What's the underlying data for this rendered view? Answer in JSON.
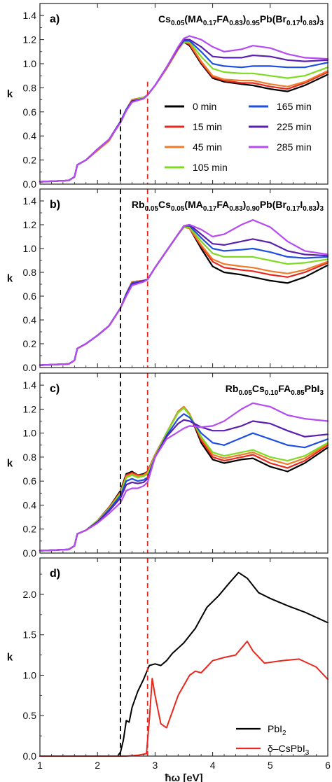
{
  "x_axis_label": "ħω [eV]",
  "x_ticks": [
    "1",
    "2",
    "3",
    "4",
    "5",
    "6"
  ],
  "colors": {
    "0 min": "#000000",
    "15 min": "#e8281e",
    "45 min": "#f07b2a",
    "105 min": "#7ddc1f",
    "165 min": "#1f4fe0",
    "225 min": "#5b1fb0",
    "285 min": "#b54bf0",
    "guide_black": "#000000",
    "guide_red": "#e8281e"
  },
  "chart_data": [
    {
      "panel": "a)",
      "type": "line",
      "title_segments": [
        [
          "Cs",
          ""
        ],
        [
          "0.05",
          "sub"
        ],
        [
          "(MA",
          ""
        ],
        [
          "0.17",
          "sub"
        ],
        [
          "FA",
          ""
        ],
        [
          "0.83",
          "sub"
        ],
        [
          ")",
          ""
        ],
        [
          "0.95",
          "sub"
        ],
        [
          "Pb(Br",
          ""
        ],
        [
          "0.17",
          "sub"
        ],
        [
          "I",
          ""
        ],
        [
          "0.83",
          "sub"
        ],
        [
          ")",
          ""
        ],
        [
          "3",
          "sub"
        ]
      ],
      "ylabel": "k",
      "xlim": [
        1,
        6
      ],
      "ylim": [
        0,
        1.5
      ],
      "y_ticks": [
        "0.0",
        "0.2",
        "0.4",
        "0.6",
        "0.8",
        "1.0",
        "1.2",
        "1.4"
      ],
      "vlines": [
        2.4,
        2.87
      ],
      "legend": [
        "0 min",
        "15 min",
        "45 min",
        "105 min",
        "165 min",
        "225 min",
        "285 min"
      ],
      "legend_layout": "two-column, center-right",
      "x": [
        1.0,
        1.5,
        1.6,
        1.65,
        1.8,
        2.0,
        2.2,
        2.4,
        2.5,
        2.6,
        2.8,
        2.87,
        3.0,
        3.2,
        3.4,
        3.5,
        3.6,
        3.8,
        4.0,
        4.2,
        4.5,
        4.7,
        5.0,
        5.3,
        5.6,
        6.0
      ],
      "series": [
        {
          "name": "0 min",
          "values": [
            0.02,
            0.03,
            0.06,
            0.16,
            0.2,
            0.28,
            0.36,
            0.52,
            0.62,
            0.7,
            0.72,
            0.74,
            0.82,
            0.96,
            1.12,
            1.18,
            1.15,
            1.0,
            0.88,
            0.85,
            0.83,
            0.82,
            0.79,
            0.77,
            0.82,
            0.91
          ]
        },
        {
          "name": "15 min",
          "values": [
            0.02,
            0.03,
            0.06,
            0.16,
            0.2,
            0.28,
            0.36,
            0.52,
            0.62,
            0.7,
            0.72,
            0.74,
            0.82,
            0.96,
            1.12,
            1.18,
            1.16,
            1.01,
            0.89,
            0.86,
            0.84,
            0.84,
            0.81,
            0.79,
            0.84,
            0.93
          ]
        },
        {
          "name": "45 min",
          "values": [
            0.02,
            0.03,
            0.06,
            0.16,
            0.2,
            0.28,
            0.36,
            0.52,
            0.62,
            0.7,
            0.72,
            0.74,
            0.82,
            0.96,
            1.12,
            1.18,
            1.17,
            1.02,
            0.9,
            0.87,
            0.86,
            0.86,
            0.83,
            0.81,
            0.85,
            0.94
          ]
        },
        {
          "name": "105 min",
          "values": [
            0.02,
            0.03,
            0.06,
            0.16,
            0.2,
            0.29,
            0.37,
            0.52,
            0.62,
            0.69,
            0.72,
            0.74,
            0.82,
            0.97,
            1.13,
            1.18,
            1.18,
            1.06,
            0.96,
            0.93,
            0.92,
            0.92,
            0.9,
            0.88,
            0.9,
            0.97
          ]
        },
        {
          "name": "165 min",
          "values": [
            0.02,
            0.03,
            0.06,
            0.16,
            0.2,
            0.29,
            0.37,
            0.52,
            0.62,
            0.69,
            0.71,
            0.74,
            0.82,
            0.97,
            1.13,
            1.19,
            1.19,
            1.1,
            1.0,
            0.98,
            0.97,
            0.98,
            0.98,
            0.97,
            0.97,
            1.01
          ]
        },
        {
          "name": "225 min",
          "values": [
            0.02,
            0.03,
            0.06,
            0.16,
            0.2,
            0.29,
            0.37,
            0.52,
            0.61,
            0.69,
            0.71,
            0.74,
            0.82,
            0.97,
            1.13,
            1.2,
            1.2,
            1.14,
            1.06,
            1.05,
            1.05,
            1.07,
            1.06,
            1.03,
            1.02,
            1.03
          ]
        },
        {
          "name": "285 min",
          "values": [
            0.02,
            0.03,
            0.06,
            0.16,
            0.2,
            0.29,
            0.37,
            0.51,
            0.61,
            0.68,
            0.71,
            0.74,
            0.82,
            0.97,
            1.14,
            1.21,
            1.23,
            1.2,
            1.14,
            1.1,
            1.12,
            1.15,
            1.13,
            1.08,
            1.05,
            1.04
          ]
        }
      ]
    },
    {
      "panel": "b)",
      "type": "line",
      "title_segments": [
        [
          "Rb",
          ""
        ],
        [
          "0.05",
          "sub"
        ],
        [
          "Cs",
          ""
        ],
        [
          "0.05",
          "sub"
        ],
        [
          "(MA",
          ""
        ],
        [
          "0.17",
          "sub"
        ],
        [
          "FA",
          ""
        ],
        [
          "0.83",
          "sub"
        ],
        [
          ")",
          ""
        ],
        [
          "0.90",
          "sub"
        ],
        [
          "Pb(Br",
          ""
        ],
        [
          "0.17",
          "sub"
        ],
        [
          "I",
          ""
        ],
        [
          "0.83",
          "sub"
        ],
        [
          ")",
          ""
        ],
        [
          "3",
          "sub"
        ]
      ],
      "ylabel": "k",
      "xlim": [
        1,
        6
      ],
      "ylim": [
        0,
        1.5
      ],
      "y_ticks": [
        "0.0",
        "0.2",
        "0.4",
        "0.6",
        "0.8",
        "1.0",
        "1.2",
        "1.4"
      ],
      "vlines": [
        2.4,
        2.87
      ],
      "x": [
        1.0,
        1.5,
        1.6,
        1.65,
        1.8,
        2.0,
        2.2,
        2.4,
        2.5,
        2.6,
        2.8,
        2.87,
        3.0,
        3.2,
        3.4,
        3.5,
        3.6,
        3.8,
        4.0,
        4.2,
        4.5,
        4.7,
        5.0,
        5.3,
        5.6,
        6.0
      ],
      "series": [
        {
          "name": "0 min",
          "values": [
            0.02,
            0.03,
            0.06,
            0.16,
            0.2,
            0.27,
            0.35,
            0.5,
            0.62,
            0.72,
            0.73,
            0.74,
            0.84,
            0.98,
            1.12,
            1.18,
            1.17,
            1.0,
            0.85,
            0.8,
            0.78,
            0.76,
            0.73,
            0.71,
            0.76,
            0.86
          ]
        },
        {
          "name": "15 min",
          "values": [
            0.02,
            0.03,
            0.06,
            0.16,
            0.2,
            0.27,
            0.35,
            0.5,
            0.62,
            0.72,
            0.73,
            0.74,
            0.84,
            0.98,
            1.12,
            1.18,
            1.17,
            1.02,
            0.89,
            0.84,
            0.82,
            0.81,
            0.78,
            0.76,
            0.8,
            0.88
          ]
        },
        {
          "name": "45 min",
          "values": [
            0.02,
            0.03,
            0.06,
            0.16,
            0.2,
            0.27,
            0.35,
            0.5,
            0.62,
            0.72,
            0.73,
            0.74,
            0.84,
            0.98,
            1.12,
            1.18,
            1.17,
            1.03,
            0.91,
            0.87,
            0.85,
            0.84,
            0.81,
            0.79,
            0.82,
            0.89
          ]
        },
        {
          "name": "105 min",
          "values": [
            0.02,
            0.03,
            0.06,
            0.16,
            0.2,
            0.27,
            0.35,
            0.5,
            0.62,
            0.71,
            0.73,
            0.74,
            0.84,
            0.98,
            1.12,
            1.18,
            1.18,
            1.06,
            0.96,
            0.93,
            0.93,
            0.93,
            0.9,
            0.87,
            0.88,
            0.91
          ]
        },
        {
          "name": "165 min",
          "values": [
            0.02,
            0.03,
            0.06,
            0.16,
            0.2,
            0.27,
            0.35,
            0.5,
            0.62,
            0.71,
            0.73,
            0.74,
            0.84,
            0.98,
            1.12,
            1.19,
            1.19,
            1.09,
            1.0,
            0.98,
            0.99,
            1.0,
            0.97,
            0.93,
            0.92,
            0.93
          ]
        },
        {
          "name": "225 min",
          "values": [
            0.02,
            0.03,
            0.06,
            0.16,
            0.2,
            0.27,
            0.35,
            0.5,
            0.61,
            0.7,
            0.73,
            0.74,
            0.84,
            0.98,
            1.12,
            1.19,
            1.2,
            1.12,
            1.04,
            1.03,
            1.06,
            1.08,
            1.05,
            0.98,
            0.95,
            0.94
          ]
        },
        {
          "name": "285 min",
          "values": [
            0.02,
            0.03,
            0.06,
            0.16,
            0.2,
            0.27,
            0.35,
            0.5,
            0.6,
            0.69,
            0.72,
            0.74,
            0.84,
            0.98,
            1.12,
            1.19,
            1.2,
            1.16,
            1.1,
            1.12,
            1.2,
            1.24,
            1.18,
            1.06,
            0.98,
            0.95
          ]
        }
      ]
    },
    {
      "panel": "c)",
      "type": "line",
      "title_segments": [
        [
          "Rb",
          ""
        ],
        [
          "0.05",
          "sub"
        ],
        [
          "Cs",
          ""
        ],
        [
          "0.10",
          "sub"
        ],
        [
          "FA",
          ""
        ],
        [
          "0.85",
          "sub"
        ],
        [
          "PbI",
          ""
        ],
        [
          "3",
          "sub"
        ]
      ],
      "ylabel": "k",
      "xlim": [
        1,
        6
      ],
      "ylim": [
        0,
        1.5
      ],
      "y_ticks": [
        "0.0",
        "0.2",
        "0.4",
        "0.6",
        "0.8",
        "1.0",
        "1.2",
        "1.4"
      ],
      "vlines": [
        2.4,
        2.87
      ],
      "x": [
        1.0,
        1.5,
        1.6,
        1.65,
        1.8,
        2.0,
        2.2,
        2.4,
        2.5,
        2.6,
        2.7,
        2.8,
        2.87,
        3.0,
        3.2,
        3.4,
        3.5,
        3.6,
        3.8,
        4.0,
        4.2,
        4.5,
        4.7,
        5.0,
        5.3,
        5.6,
        6.0
      ],
      "series": [
        {
          "name": "0 min",
          "values": [
            0.02,
            0.03,
            0.06,
            0.16,
            0.19,
            0.27,
            0.38,
            0.52,
            0.66,
            0.68,
            0.65,
            0.66,
            0.68,
            0.82,
            1.0,
            1.18,
            1.22,
            1.16,
            0.92,
            0.78,
            0.75,
            0.78,
            0.79,
            0.72,
            0.68,
            0.75,
            0.88
          ]
        },
        {
          "name": "15 min",
          "values": [
            0.02,
            0.03,
            0.06,
            0.16,
            0.19,
            0.27,
            0.38,
            0.51,
            0.65,
            0.67,
            0.65,
            0.65,
            0.68,
            0.82,
            1.0,
            1.18,
            1.22,
            1.16,
            0.94,
            0.8,
            0.77,
            0.8,
            0.82,
            0.75,
            0.71,
            0.77,
            0.9
          ]
        },
        {
          "name": "45 min",
          "values": [
            0.02,
            0.03,
            0.06,
            0.16,
            0.19,
            0.27,
            0.37,
            0.5,
            0.64,
            0.66,
            0.64,
            0.65,
            0.67,
            0.82,
            1.0,
            1.18,
            1.22,
            1.16,
            0.96,
            0.82,
            0.79,
            0.82,
            0.84,
            0.78,
            0.74,
            0.79,
            0.91
          ]
        },
        {
          "name": "105 min",
          "values": [
            0.02,
            0.03,
            0.06,
            0.16,
            0.19,
            0.27,
            0.37,
            0.5,
            0.63,
            0.65,
            0.63,
            0.64,
            0.66,
            0.81,
            1.0,
            1.17,
            1.21,
            1.15,
            0.97,
            0.84,
            0.81,
            0.84,
            0.86,
            0.8,
            0.77,
            0.81,
            0.92
          ]
        },
        {
          "name": "165 min",
          "values": [
            0.02,
            0.03,
            0.06,
            0.16,
            0.19,
            0.26,
            0.36,
            0.48,
            0.6,
            0.62,
            0.6,
            0.61,
            0.63,
            0.8,
            0.98,
            1.12,
            1.16,
            1.13,
            1.0,
            0.92,
            0.9,
            0.96,
            1.0,
            0.95,
            0.9,
            0.88,
            0.95
          ]
        },
        {
          "name": "225 min",
          "values": [
            0.02,
            0.03,
            0.06,
            0.16,
            0.19,
            0.26,
            0.35,
            0.46,
            0.57,
            0.59,
            0.58,
            0.59,
            0.62,
            0.8,
            0.97,
            1.08,
            1.11,
            1.1,
            1.05,
            1.02,
            1.02,
            1.06,
            1.1,
            1.08,
            1.02,
            0.97,
            0.99
          ]
        },
        {
          "name": "285 min",
          "values": [
            0.02,
            0.03,
            0.06,
            0.16,
            0.19,
            0.25,
            0.33,
            0.42,
            0.52,
            0.54,
            0.54,
            0.56,
            0.59,
            0.8,
            0.95,
            1.01,
            1.04,
            1.06,
            1.05,
            1.06,
            1.1,
            1.2,
            1.25,
            1.22,
            1.15,
            1.12,
            1.1
          ]
        }
      ]
    },
    {
      "panel": "d)",
      "type": "line",
      "ylabel": "k",
      "xlim": [
        1,
        6
      ],
      "ylim": [
        0,
        2.45
      ],
      "y_ticks": [
        "0.0",
        "0.5",
        "1.0",
        "1.5",
        "2.0"
      ],
      "vlines": [
        2.4,
        2.87
      ],
      "legend": [
        "PbI2",
        "δ–CsPbI3"
      ],
      "legend_layout": "bottom-right",
      "series": [
        {
          "name": "PbI2",
          "x": [
            1.0,
            2.0,
            2.35,
            2.4,
            2.45,
            2.5,
            2.55,
            2.6,
            2.65,
            2.7,
            2.8,
            2.9,
            3.0,
            3.1,
            3.2,
            3.3,
            3.5,
            3.7,
            3.9,
            4.1,
            4.3,
            4.45,
            4.6,
            4.8,
            5.0,
            5.3,
            5.6,
            6.0
          ],
          "values": [
            0.0,
            0.0,
            0.0,
            0.05,
            0.2,
            0.44,
            0.42,
            0.6,
            0.7,
            0.8,
            0.95,
            1.12,
            1.14,
            1.12,
            1.18,
            1.27,
            1.4,
            1.58,
            1.84,
            1.98,
            2.15,
            2.27,
            2.2,
            2.02,
            1.95,
            1.86,
            1.78,
            1.65
          ]
        },
        {
          "name": "δ–CsPbI3",
          "x": [
            1.0,
            2.0,
            2.5,
            2.7,
            2.85,
            2.9,
            2.95,
            3.0,
            3.1,
            3.2,
            3.3,
            3.4,
            3.6,
            3.7,
            3.8,
            4.0,
            4.2,
            4.4,
            4.6,
            4.7,
            4.9,
            5.2,
            5.5,
            5.8,
            6.0
          ],
          "values": [
            0.0,
            0.0,
            0.0,
            0.01,
            0.03,
            0.45,
            0.96,
            0.75,
            0.4,
            0.35,
            0.55,
            0.75,
            1.0,
            1.05,
            1.03,
            1.18,
            1.22,
            1.25,
            1.42,
            1.3,
            1.15,
            1.18,
            1.2,
            1.1,
            0.95
          ]
        }
      ]
    }
  ]
}
